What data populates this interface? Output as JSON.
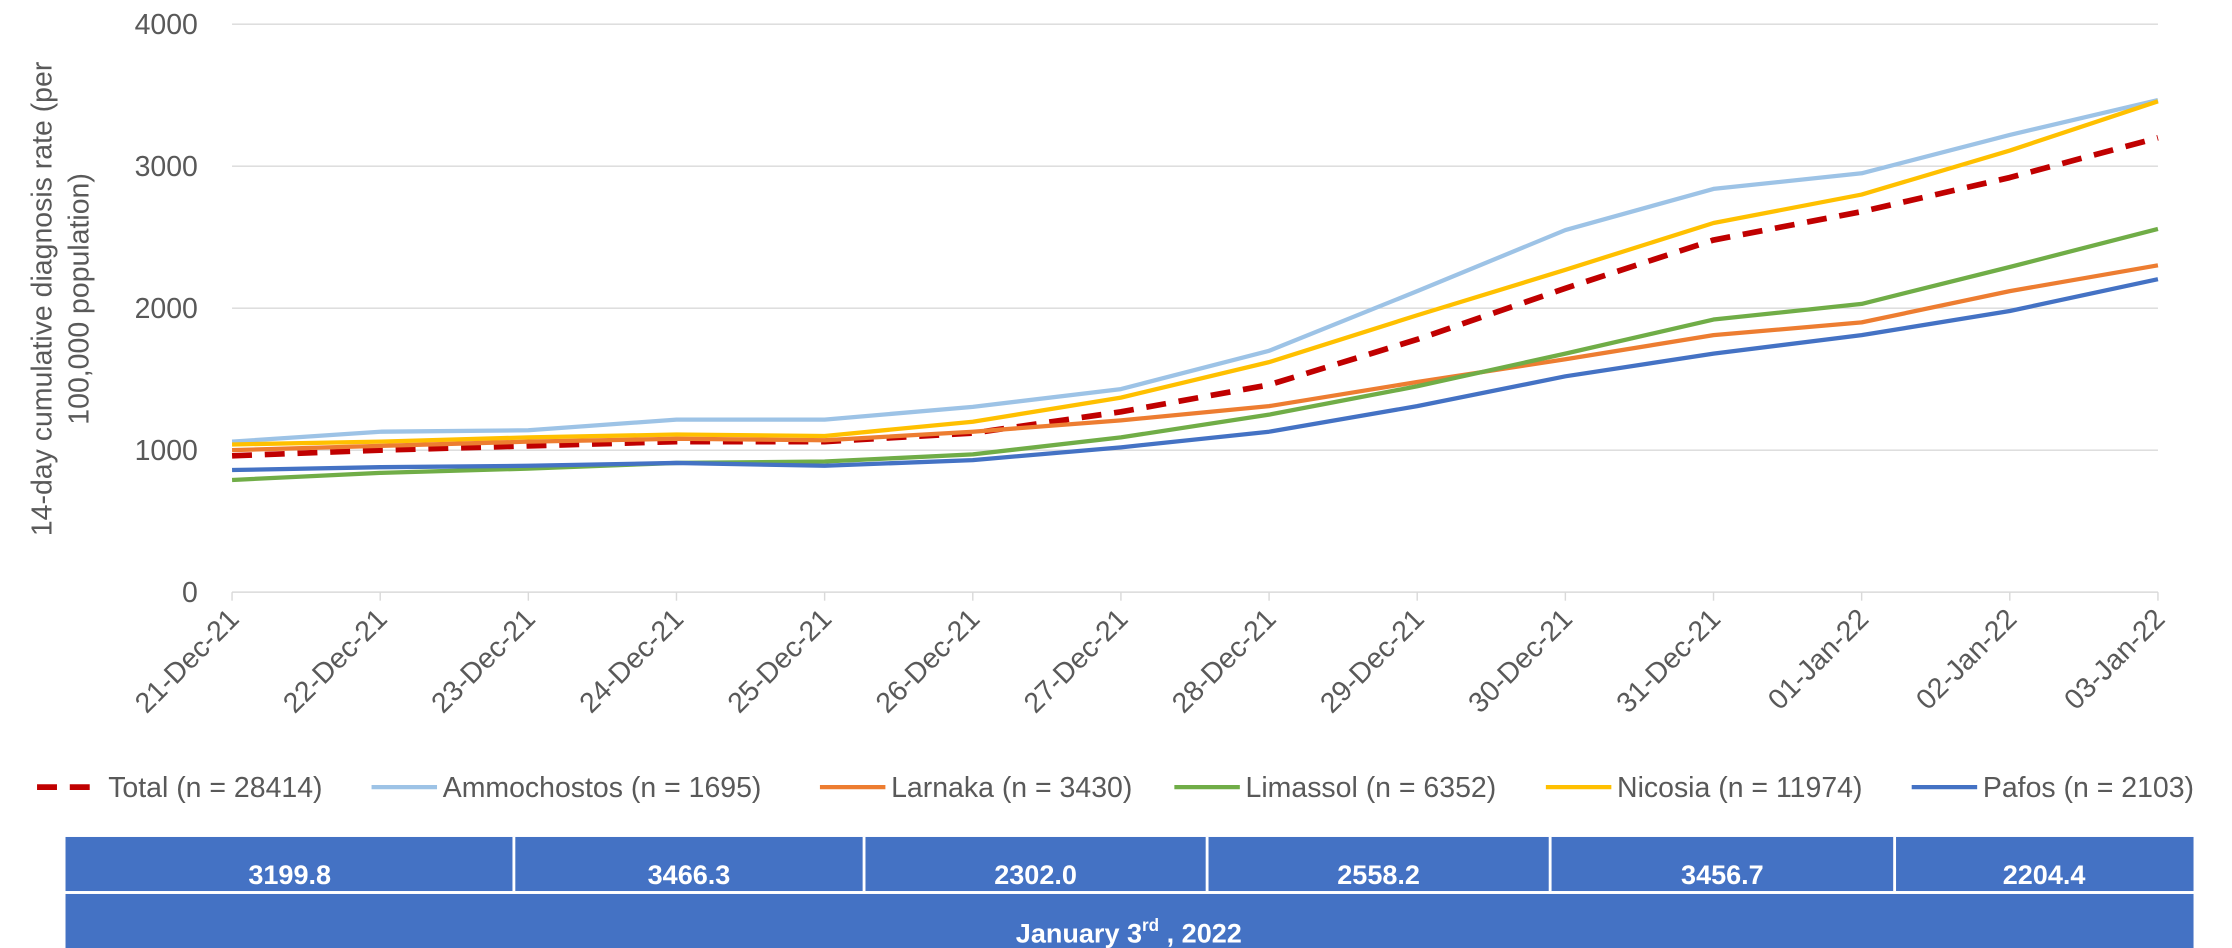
{
  "chart_data": {
    "type": "line",
    "ylabel": [
      "14-day cumulative diagnosis rate (per",
      "100,000 population)"
    ],
    "categories": [
      "21-Dec-21",
      "22-Dec-21",
      "23-Dec-21",
      "24-Dec-21",
      "25-Dec-21",
      "26-Dec-21",
      "27-Dec-21",
      "28-Dec-21",
      "29-Dec-21",
      "30-Dec-21",
      "31-Dec-21",
      "01-Jan-22",
      "02-Jan-22",
      "03-Jan-22"
    ],
    "series": [
      {
        "name": "Total (n = 28414)",
        "color": "#c00000",
        "style": "dashed",
        "values": [
          960,
          1000,
          1030,
          1060,
          1060,
          1120,
          1270,
          1460,
          1780,
          2140,
          2480,
          2680,
          2920,
          3200
        ]
      },
      {
        "name": "Ammochostos (n = 1695)",
        "color": "#9dc3e6",
        "values": [
          1060,
          1130,
          1140,
          1215,
          1215,
          1305,
          1430,
          1700,
          2120,
          2550,
          2840,
          2950,
          3220,
          3466
        ]
      },
      {
        "name": "Larnaka (n = 3430)",
        "color": "#ed7d31",
        "values": [
          1000,
          1030,
          1060,
          1080,
          1070,
          1130,
          1210,
          1310,
          1480,
          1640,
          1810,
          1900,
          2120,
          2302
        ]
      },
      {
        "name": "Limassol (n = 6352)",
        "color": "#70ad47",
        "values": [
          790,
          840,
          870,
          910,
          920,
          970,
          1090,
          1250,
          1450,
          1680,
          1920,
          2030,
          2290,
          2558
        ]
      },
      {
        "name": "Nicosia (n = 11974)",
        "color": "#ffc000",
        "values": [
          1040,
          1060,
          1090,
          1110,
          1100,
          1200,
          1370,
          1620,
          1950,
          2270,
          2600,
          2800,
          3110,
          3457
        ]
      },
      {
        "name": "Pafos (n = 2103)",
        "color": "#4472c4",
        "values": [
          860,
          880,
          890,
          910,
          890,
          930,
          1020,
          1130,
          1310,
          1520,
          1680,
          1810,
          1980,
          2204
        ]
      }
    ],
    "ylim": [
      0,
      4000
    ],
    "yticks": [
      0,
      1000,
      2000,
      3000,
      4000
    ],
    "grid": true,
    "legend": "bottom"
  },
  "table": {
    "values": [
      "3199.8",
      "3466.3",
      "2302.0",
      "2558.2",
      "3456.7",
      "2204.4"
    ],
    "footer": [
      "January 3",
      "rd",
      " , 2022"
    ]
  }
}
